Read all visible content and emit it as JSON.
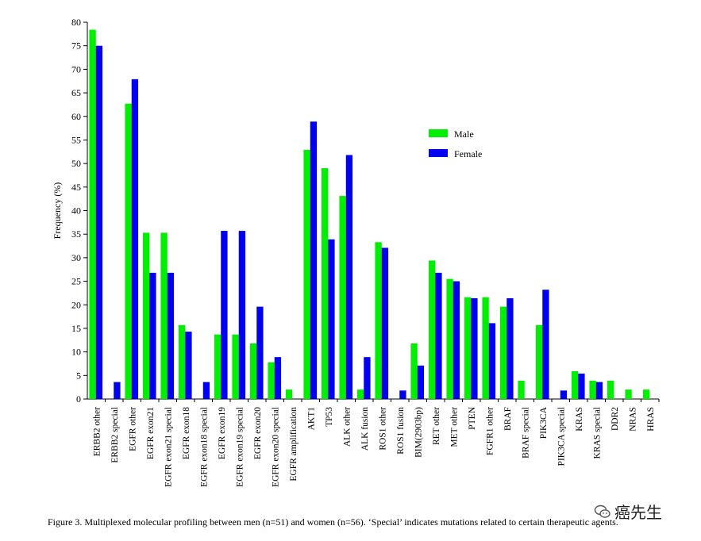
{
  "caption": "Figure 3. Multiplexed molecular profiling between men (n=51) and women (n=56). ‘Special’ indicates mutations related to certain therapeutic agents.",
  "watermark": "癌先生",
  "chart_data": {
    "type": "bar",
    "title": "",
    "xlabel": "",
    "ylabel": "Frequency (%)",
    "ylim": [
      0,
      80
    ],
    "yticks": [
      0,
      5,
      10,
      15,
      20,
      25,
      30,
      35,
      40,
      45,
      50,
      55,
      60,
      65,
      70,
      75,
      80
    ],
    "legend_position": "upper-right-center",
    "categories": [
      "ERBB2 other",
      "ERBB2 special",
      "EGFR other",
      "EGFR exon21",
      "EGFR exon21 special",
      "EGFR exon18",
      "EGFR exon18 special",
      "EGFR exon19",
      "EGFR exon19 special",
      "EGFR exon20",
      "EGFR exon20 special",
      "EGFR amplification",
      "AKT1",
      "TP53",
      "ALK other",
      "ALK fusion",
      "ROS1 other",
      "ROS1 fusion",
      "BIM(2903bp)",
      "RET other",
      "MET other",
      "PTEN",
      "FGFR1 other",
      "BRAF",
      "BRAF special",
      "PIK3CA",
      "PIK3CA special",
      "KRAS",
      "KRAS special",
      "DDR2",
      "NRAS",
      "HRAS"
    ],
    "series": [
      {
        "name": "Male",
        "color": "#00ee00",
        "values": [
          78.4,
          0,
          62.7,
          35.3,
          35.3,
          15.7,
          0,
          13.7,
          13.7,
          11.8,
          7.8,
          2.0,
          52.9,
          49.0,
          43.1,
          2.0,
          33.3,
          0,
          11.8,
          29.4,
          25.5,
          21.6,
          21.6,
          19.6,
          3.9,
          15.7,
          0,
          5.9,
          3.9,
          3.9,
          2.0,
          2.0
        ]
      },
      {
        "name": "Female",
        "color": "#0000ee",
        "values": [
          75.0,
          3.6,
          67.9,
          26.8,
          26.8,
          14.3,
          3.6,
          35.7,
          35.7,
          19.6,
          8.9,
          0,
          58.9,
          33.9,
          51.8,
          8.9,
          32.1,
          1.8,
          7.1,
          26.8,
          25.0,
          21.4,
          16.1,
          21.4,
          0,
          23.2,
          1.8,
          5.4,
          3.6,
          0,
          0,
          0
        ]
      }
    ]
  }
}
